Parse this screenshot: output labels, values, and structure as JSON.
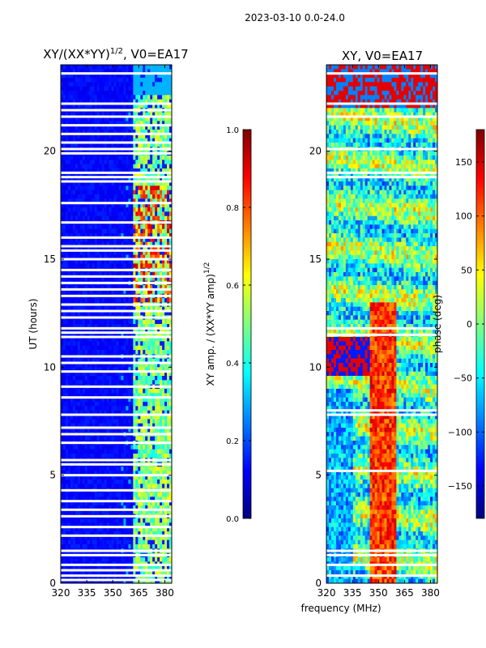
{
  "suptitle": "2023-03-10 0.0-24.0",
  "shared_xlabel": "frequency (MHz)",
  "colors": {
    "jet": [
      "#00007f",
      "#0000ff",
      "#007fff",
      "#00ffff",
      "#7fff7f",
      "#ffff00",
      "#ff7f00",
      "#ff0000",
      "#7f0000"
    ]
  },
  "chart_data": [
    {
      "type": "heatmap",
      "title_main": "XY/(XX*YY)",
      "title_sup": "1/2",
      "title_suffix": ", V0=EA17",
      "xlabel": "",
      "ylabel": "UT (hours)",
      "xlim": [
        320,
        384
      ],
      "ylim": [
        0,
        24
      ],
      "xticks": [
        320,
        335,
        350,
        365,
        380
      ],
      "yticks": [
        0,
        5,
        10,
        15,
        20
      ],
      "data_gaps_hours": [
        0.15,
        0.35,
        0.6,
        0.85,
        1.3,
        1.5,
        2.2,
        2.6,
        3.1,
        3.4,
        3.8,
        4.3,
        5.0,
        5.5,
        5.7,
        6.5,
        6.9,
        7.2,
        7.8,
        8.6,
        9.1,
        9.8,
        10.2,
        10.5,
        11.4,
        11.6,
        11.8,
        12.3,
        12.6,
        12.9,
        13.3,
        13.6,
        13.9,
        14.2,
        14.5,
        15.0,
        15.4,
        15.6,
        16.0,
        16.7,
        17.6,
        18.6,
        18.8,
        19.0,
        19.9,
        20.1,
        20.4,
        20.8,
        21.2,
        21.6,
        21.9,
        22.2,
        23.6
      ],
      "colorbar": {
        "label_main": "XY amp. / (XX*YY amp)",
        "label_sup": "1/2",
        "range": [
          0.0,
          1.0
        ],
        "ticks": [
          "0.0",
          "0.2",
          "0.4",
          "0.6",
          "0.8",
          "1.0"
        ]
      }
    },
    {
      "type": "heatmap",
      "title_main": "XY, V0=EA17",
      "xlabel": "frequency (MHz)",
      "ylabel": "",
      "xlim": [
        320,
        384
      ],
      "ylim": [
        0,
        24
      ],
      "xticks": [
        320,
        335,
        350,
        365,
        380
      ],
      "yticks": [
        0,
        5,
        10,
        15,
        20
      ],
      "data_gaps_hours": [
        0.35,
        0.85,
        1.3,
        1.5,
        5.2,
        7.8,
        8.0,
        11.5,
        11.8,
        18.8,
        19.0,
        20.1,
        21.6,
        22.2,
        23.6
      ],
      "colorbar": {
        "label_main": "phase (deg)",
        "range": [
          -180,
          180
        ],
        "ticks": [
          "−150",
          "−100",
          "−50",
          "0",
          "50",
          "100",
          "150"
        ]
      }
    }
  ]
}
